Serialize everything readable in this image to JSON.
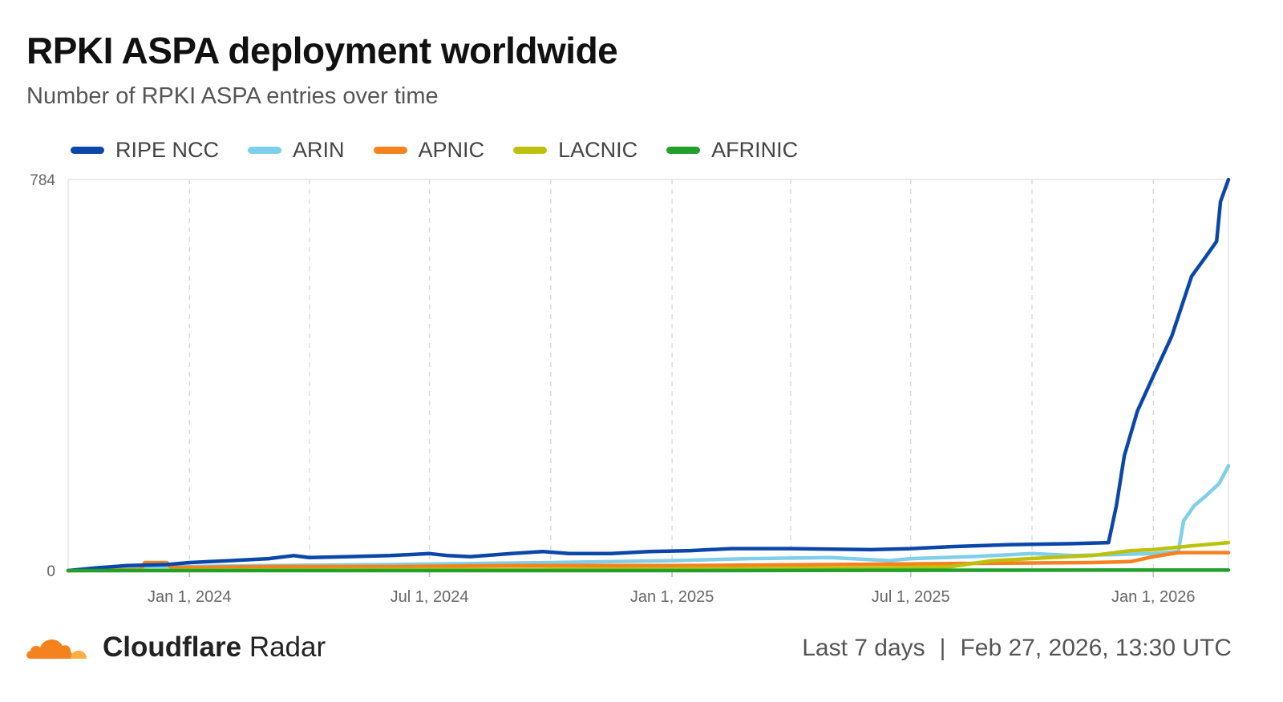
{
  "header": {
    "title": "RPKI ASPA deployment worldwide",
    "subtitle": "Number of RPKI ASPA entries over time"
  },
  "footer": {
    "brand_bold": "Cloudflare",
    "brand_light": "Radar",
    "range": "Last 7 days",
    "separator": "|",
    "timestamp": "Feb 27, 2026, 13:30 UTC"
  },
  "colors": {
    "RIPE NCC": "#0a47a9",
    "ARIN": "#7fcfea",
    "APNIC": "#f6821f",
    "LACNIC": "#bcc20b",
    "AFRINIC": "#22a02c",
    "brand_orange": "#f6821f",
    "brand_yellow": "#fbad41"
  },
  "chart_data": {
    "type": "line",
    "title": "RPKI ASPA deployment worldwide",
    "subtitle": "Number of RPKI ASPA entries over time",
    "xlabel": "",
    "ylabel": "",
    "xlim": [
      "2023-10-01",
      "2026-02-27"
    ],
    "ylim": [
      0,
      784
    ],
    "y_ticks": [
      0,
      784
    ],
    "x_ticks": [
      {
        "date": "2024-01-01",
        "label": "Jan 1, 2024"
      },
      {
        "date": "2024-07-01",
        "label": "Jul 1, 2024"
      },
      {
        "date": "2025-01-01",
        "label": "Jan 1, 2025"
      },
      {
        "date": "2025-07-01",
        "label": "Jul 1, 2025"
      },
      {
        "date": "2026-01-01",
        "label": "Jan 1, 2026"
      }
    ],
    "grid": "vertical dashed",
    "legend_position": "top-left",
    "series": [
      {
        "name": "RIPE NCC",
        "points": [
          [
            "2023-10-01",
            0
          ],
          [
            "2023-10-25",
            6
          ],
          [
            "2023-11-15",
            10
          ],
          [
            "2023-12-15",
            12
          ],
          [
            "2024-01-01",
            16
          ],
          [
            "2024-02-01",
            20
          ],
          [
            "2024-03-01",
            24
          ],
          [
            "2024-03-20",
            30
          ],
          [
            "2024-04-01",
            26
          ],
          [
            "2024-05-01",
            28
          ],
          [
            "2024-06-01",
            30
          ],
          [
            "2024-07-01",
            34
          ],
          [
            "2024-07-15",
            30
          ],
          [
            "2024-08-01",
            28
          ],
          [
            "2024-09-01",
            34
          ],
          [
            "2024-09-25",
            38
          ],
          [
            "2024-10-15",
            34
          ],
          [
            "2024-11-15",
            34
          ],
          [
            "2024-12-15",
            38
          ],
          [
            "2025-01-15",
            40
          ],
          [
            "2025-02-15",
            44
          ],
          [
            "2025-04-01",
            44
          ],
          [
            "2025-06-01",
            42
          ],
          [
            "2025-07-01",
            44
          ],
          [
            "2025-08-01",
            48
          ],
          [
            "2025-09-15",
            52
          ],
          [
            "2025-11-01",
            54
          ],
          [
            "2025-11-28",
            56
          ],
          [
            "2025-12-04",
            130
          ],
          [
            "2025-12-10",
            230
          ],
          [
            "2025-12-20",
            320
          ],
          [
            "2026-01-01",
            390
          ],
          [
            "2026-01-15",
            470
          ],
          [
            "2026-01-30",
            590
          ],
          [
            "2026-02-10",
            630
          ],
          [
            "2026-02-18",
            660
          ],
          [
            "2026-02-21",
            740
          ],
          [
            "2026-02-27",
            784
          ]
        ]
      },
      {
        "name": "ARIN",
        "points": [
          [
            "2023-10-01",
            0
          ],
          [
            "2023-11-01",
            6
          ],
          [
            "2023-12-01",
            8
          ],
          [
            "2024-01-01",
            8
          ],
          [
            "2024-03-01",
            10
          ],
          [
            "2024-06-01",
            12
          ],
          [
            "2024-08-01",
            14
          ],
          [
            "2024-10-01",
            16
          ],
          [
            "2025-01-01",
            20
          ],
          [
            "2025-03-01",
            24
          ],
          [
            "2025-05-01",
            26
          ],
          [
            "2025-06-15",
            20
          ],
          [
            "2025-07-01",
            24
          ],
          [
            "2025-08-15",
            28
          ],
          [
            "2025-10-01",
            34
          ],
          [
            "2025-11-01",
            30
          ],
          [
            "2025-12-01",
            32
          ],
          [
            "2026-01-01",
            34
          ],
          [
            "2026-01-20",
            38
          ],
          [
            "2026-01-24",
            100
          ],
          [
            "2026-02-01",
            130
          ],
          [
            "2026-02-10",
            150
          ],
          [
            "2026-02-20",
            175
          ],
          [
            "2026-02-27",
            210
          ]
        ]
      },
      {
        "name": "APNIC",
        "points": [
          [
            "2023-10-01",
            0
          ],
          [
            "2023-11-25",
            2
          ],
          [
            "2023-11-28",
            16
          ],
          [
            "2023-12-15",
            16
          ],
          [
            "2023-12-18",
            6
          ],
          [
            "2024-03-01",
            8
          ],
          [
            "2024-06-01",
            8
          ],
          [
            "2024-09-01",
            10
          ],
          [
            "2025-01-01",
            10
          ],
          [
            "2025-05-01",
            12
          ],
          [
            "2025-08-01",
            14
          ],
          [
            "2025-11-15",
            16
          ],
          [
            "2025-12-15",
            18
          ],
          [
            "2026-01-01",
            28
          ],
          [
            "2026-01-20",
            36
          ],
          [
            "2026-02-27",
            36
          ]
        ]
      },
      {
        "name": "LACNIC",
        "points": [
          [
            "2023-10-01",
            0
          ],
          [
            "2024-06-01",
            2
          ],
          [
            "2025-01-01",
            3
          ],
          [
            "2025-06-01",
            5
          ],
          [
            "2025-08-01",
            8
          ],
          [
            "2025-09-01",
            20
          ],
          [
            "2025-10-15",
            26
          ],
          [
            "2025-11-15",
            30
          ],
          [
            "2025-12-15",
            40
          ],
          [
            "2026-01-01",
            42
          ],
          [
            "2026-02-01",
            50
          ],
          [
            "2026-02-27",
            56
          ]
        ]
      },
      {
        "name": "AFRINIC",
        "points": [
          [
            "2023-10-01",
            0
          ],
          [
            "2025-01-01",
            0
          ],
          [
            "2025-12-01",
            1
          ],
          [
            "2026-02-27",
            1
          ]
        ]
      }
    ]
  }
}
